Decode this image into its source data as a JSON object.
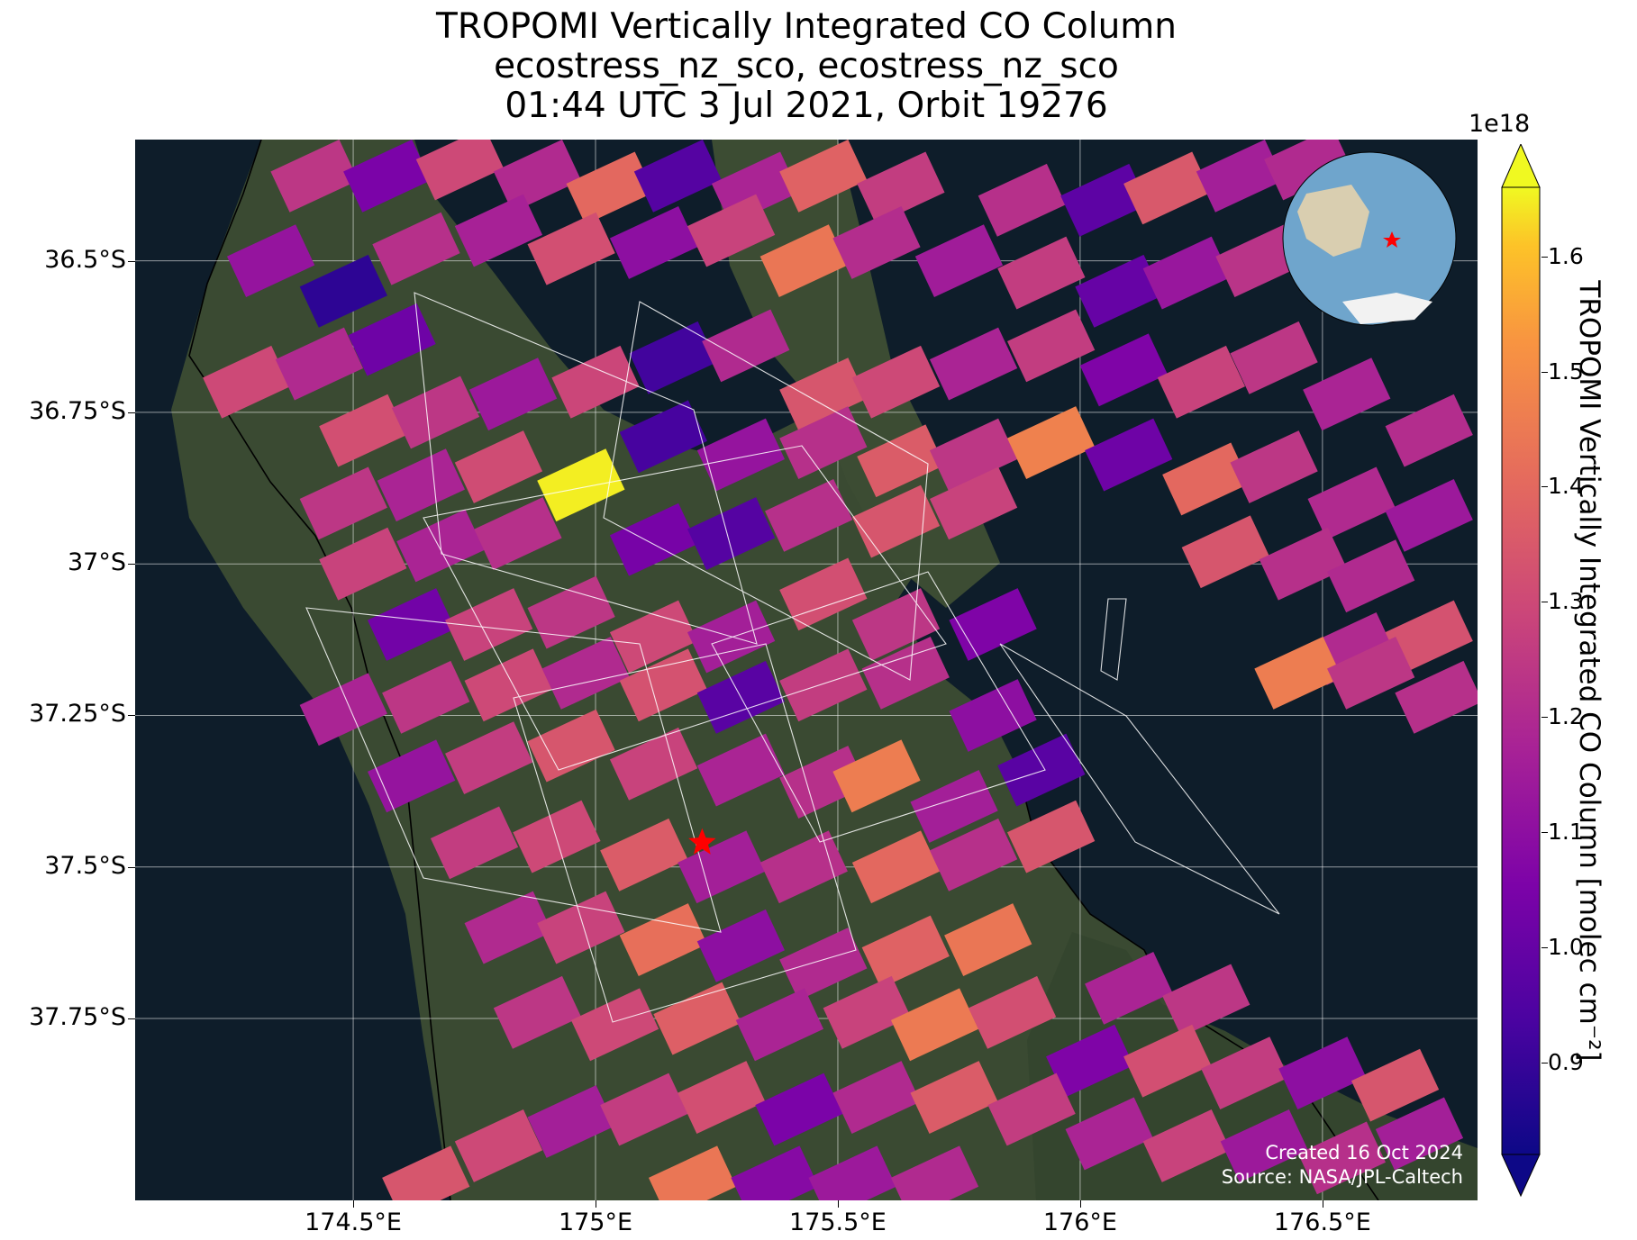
{
  "title": {
    "line1": "TROPOMI Vertically Integrated CO Column",
    "line2": "ecostress_nz_sco, ecostress_nz_sco",
    "line3": "01:44 UTC 3 Jul 2021, Orbit 19276"
  },
  "map": {
    "lon_range": [
      174.05,
      176.82
    ],
    "lat_range": [
      -38.05,
      -36.3
    ],
    "lat_ticks": [
      {
        "value": -36.5,
        "label": "36.5°S"
      },
      {
        "value": -36.75,
        "label": "36.75°S"
      },
      {
        "value": -37.0,
        "label": "37°S"
      },
      {
        "value": -37.25,
        "label": "37.25°S"
      },
      {
        "value": -37.5,
        "label": "37.5°S"
      },
      {
        "value": -37.75,
        "label": "37.75°S"
      }
    ],
    "lon_ticks": [
      {
        "value": 174.5,
        "label": "174.5°E"
      },
      {
        "value": 175.0,
        "label": "175°E"
      },
      {
        "value": 175.5,
        "label": "175.5°E"
      },
      {
        "value": 176.0,
        "label": "176°E"
      },
      {
        "value": 176.5,
        "label": "176.5°E"
      }
    ],
    "target_marker": {
      "lon": 175.22,
      "lat": -37.46,
      "color": "#ff0000"
    },
    "credit_line1": "Created 16 Oct 2024",
    "credit_line2": "Source: NASA/JPL-Caltech",
    "inset_globe": {
      "ocean_color": "#6fa5cc",
      "land_color": "#d9ceb0",
      "marker_color": "#ff0000"
    }
  },
  "colorbar": {
    "label": "TROPOMI Vertically Integrated CO Column [molec cm⁻²]",
    "exponent": "1e18",
    "colormap": "plasma",
    "vmin": 0.82,
    "vmax": 1.66,
    "ticks": [
      {
        "value": 0.9,
        "label": "0.9"
      },
      {
        "value": 1.0,
        "label": "1.0"
      },
      {
        "value": 1.1,
        "label": "1.1"
      },
      {
        "value": 1.2,
        "label": "1.2"
      },
      {
        "value": 1.3,
        "label": "1.3"
      },
      {
        "value": 1.4,
        "label": "1.4"
      },
      {
        "value": 1.5,
        "label": "1.5"
      },
      {
        "value": 1.6,
        "label": "1.6"
      }
    ]
  },
  "chart_data": {
    "type": "heatmap",
    "title": "TROPOMI Vertically Integrated CO Column",
    "xlabel": "",
    "ylabel": "",
    "units": "molec cm⁻² (×1e18)",
    "swath_angle_deg": 25,
    "cells": [
      {
        "lon": 174.42,
        "lat": -36.36,
        "v": 1.24
      },
      {
        "lon": 174.57,
        "lat": -36.36,
        "v": 1.05
      },
      {
        "lon": 174.72,
        "lat": -36.34,
        "v": 1.3
      },
      {
        "lon": 174.88,
        "lat": -36.36,
        "v": 1.2
      },
      {
        "lon": 175.03,
        "lat": -36.38,
        "v": 1.4
      },
      {
        "lon": 175.17,
        "lat": -36.36,
        "v": 0.96
      },
      {
        "lon": 175.33,
        "lat": -36.38,
        "v": 1.18
      },
      {
        "lon": 175.47,
        "lat": -36.36,
        "v": 1.38
      },
      {
        "lon": 175.63,
        "lat": -36.38,
        "v": 1.26
      },
      {
        "lon": 175.88,
        "lat": -36.4,
        "v": 1.22
      },
      {
        "lon": 176.05,
        "lat": -36.4,
        "v": 0.98
      },
      {
        "lon": 176.18,
        "lat": -36.38,
        "v": 1.35
      },
      {
        "lon": 176.33,
        "lat": -36.36,
        "v": 1.16
      },
      {
        "lon": 176.47,
        "lat": -36.34,
        "v": 1.2
      },
      {
        "lon": 174.33,
        "lat": -36.5,
        "v": 1.12
      },
      {
        "lon": 174.48,
        "lat": -36.55,
        "v": 0.88
      },
      {
        "lon": 174.63,
        "lat": -36.48,
        "v": 1.22
      },
      {
        "lon": 174.8,
        "lat": -36.45,
        "v": 1.17
      },
      {
        "lon": 174.95,
        "lat": -36.48,
        "v": 1.32
      },
      {
        "lon": 175.12,
        "lat": -36.47,
        "v": 1.1
      },
      {
        "lon": 175.28,
        "lat": -36.45,
        "v": 1.28
      },
      {
        "lon": 175.43,
        "lat": -36.5,
        "v": 1.44
      },
      {
        "lon": 175.58,
        "lat": -36.47,
        "v": 1.21
      },
      {
        "lon": 175.75,
        "lat": -36.5,
        "v": 1.15
      },
      {
        "lon": 175.92,
        "lat": -36.52,
        "v": 1.26
      },
      {
        "lon": 176.08,
        "lat": -36.55,
        "v": 1.0
      },
      {
        "lon": 176.22,
        "lat": -36.52,
        "v": 1.13
      },
      {
        "lon": 176.37,
        "lat": -36.5,
        "v": 1.23
      },
      {
        "lon": 174.28,
        "lat": -36.7,
        "v": 1.3
      },
      {
        "lon": 174.43,
        "lat": -36.67,
        "v": 1.2
      },
      {
        "lon": 174.58,
        "lat": -36.63,
        "v": 1.02
      },
      {
        "lon": 174.52,
        "lat": -36.78,
        "v": 1.32
      },
      {
        "lon": 174.67,
        "lat": -36.75,
        "v": 1.24
      },
      {
        "lon": 174.83,
        "lat": -36.72,
        "v": 1.14
      },
      {
        "lon": 175.0,
        "lat": -36.7,
        "v": 1.29
      },
      {
        "lon": 175.16,
        "lat": -36.66,
        "v": 0.92
      },
      {
        "lon": 175.31,
        "lat": -36.64,
        "v": 1.2
      },
      {
        "lon": 175.47,
        "lat": -36.72,
        "v": 1.34
      },
      {
        "lon": 175.62,
        "lat": -36.7,
        "v": 1.3
      },
      {
        "lon": 175.78,
        "lat": -36.67,
        "v": 1.18
      },
      {
        "lon": 175.94,
        "lat": -36.64,
        "v": 1.26
      },
      {
        "lon": 176.09,
        "lat": -36.68,
        "v": 1.06
      },
      {
        "lon": 176.25,
        "lat": -36.7,
        "v": 1.28
      },
      {
        "lon": 176.4,
        "lat": -36.66,
        "v": 1.24
      },
      {
        "lon": 176.55,
        "lat": -36.72,
        "v": 1.18
      },
      {
        "lon": 176.72,
        "lat": -36.78,
        "v": 1.21
      },
      {
        "lon": 174.48,
        "lat": -36.9,
        "v": 1.24
      },
      {
        "lon": 174.64,
        "lat": -36.87,
        "v": 1.18
      },
      {
        "lon": 174.8,
        "lat": -36.84,
        "v": 1.31
      },
      {
        "lon": 174.97,
        "lat": -36.87,
        "v": 1.65
      },
      {
        "lon": 175.14,
        "lat": -36.79,
        "v": 0.93
      },
      {
        "lon": 175.3,
        "lat": -36.82,
        "v": 1.12
      },
      {
        "lon": 175.47,
        "lat": -36.8,
        "v": 1.22
      },
      {
        "lon": 175.63,
        "lat": -36.83,
        "v": 1.36
      },
      {
        "lon": 175.78,
        "lat": -36.82,
        "v": 1.24
      },
      {
        "lon": 175.94,
        "lat": -36.8,
        "v": 1.47
      },
      {
        "lon": 176.1,
        "lat": -36.82,
        "v": 1.02
      },
      {
        "lon": 176.26,
        "lat": -36.86,
        "v": 1.4
      },
      {
        "lon": 176.4,
        "lat": -36.84,
        "v": 1.24
      },
      {
        "lon": 176.56,
        "lat": -36.9,
        "v": 1.2
      },
      {
        "lon": 176.72,
        "lat": -36.92,
        "v": 1.14
      },
      {
        "lon": 174.52,
        "lat": -37.0,
        "v": 1.28
      },
      {
        "lon": 174.68,
        "lat": -36.97,
        "v": 1.18
      },
      {
        "lon": 174.84,
        "lat": -36.95,
        "v": 1.22
      },
      {
        "lon": 175.12,
        "lat": -36.96,
        "v": 1.04
      },
      {
        "lon": 175.28,
        "lat": -36.95,
        "v": 0.96
      },
      {
        "lon": 175.44,
        "lat": -36.92,
        "v": 1.22
      },
      {
        "lon": 175.62,
        "lat": -36.93,
        "v": 1.34
      },
      {
        "lon": 175.78,
        "lat": -36.9,
        "v": 1.28
      },
      {
        "lon": 176.3,
        "lat": -36.98,
        "v": 1.34
      },
      {
        "lon": 176.46,
        "lat": -37.0,
        "v": 1.22
      },
      {
        "lon": 176.6,
        "lat": -37.02,
        "v": 1.2
      },
      {
        "lon": 174.62,
        "lat": -37.1,
        "v": 1.03
      },
      {
        "lon": 174.78,
        "lat": -37.1,
        "v": 1.28
      },
      {
        "lon": 174.95,
        "lat": -37.08,
        "v": 1.24
      },
      {
        "lon": 175.12,
        "lat": -37.12,
        "v": 1.3
      },
      {
        "lon": 175.28,
        "lat": -37.12,
        "v": 1.16
      },
      {
        "lon": 175.47,
        "lat": -37.05,
        "v": 1.32
      },
      {
        "lon": 175.62,
        "lat": -37.1,
        "v": 1.24
      },
      {
        "lon": 175.82,
        "lat": -37.1,
        "v": 1.06
      },
      {
        "lon": 176.56,
        "lat": -37.14,
        "v": 1.2
      },
      {
        "lon": 176.72,
        "lat": -37.12,
        "v": 1.33
      },
      {
        "lon": 174.48,
        "lat": -37.24,
        "v": 1.18
      },
      {
        "lon": 174.65,
        "lat": -37.22,
        "v": 1.24
      },
      {
        "lon": 174.82,
        "lat": -37.2,
        "v": 1.3
      },
      {
        "lon": 174.98,
        "lat": -37.18,
        "v": 1.2
      },
      {
        "lon": 175.14,
        "lat": -37.2,
        "v": 1.33
      },
      {
        "lon": 175.3,
        "lat": -37.22,
        "v": 0.97
      },
      {
        "lon": 175.47,
        "lat": -37.2,
        "v": 1.26
      },
      {
        "lon": 175.64,
        "lat": -37.18,
        "v": 1.22
      },
      {
        "lon": 175.82,
        "lat": -37.25,
        "v": 1.1
      },
      {
        "lon": 176.45,
        "lat": -37.18,
        "v": 1.46
      },
      {
        "lon": 176.6,
        "lat": -37.18,
        "v": 1.24
      },
      {
        "lon": 176.74,
        "lat": -37.22,
        "v": 1.22
      },
      {
        "lon": 174.62,
        "lat": -37.35,
        "v": 1.12
      },
      {
        "lon": 174.78,
        "lat": -37.32,
        "v": 1.26
      },
      {
        "lon": 174.95,
        "lat": -37.3,
        "v": 1.34
      },
      {
        "lon": 175.12,
        "lat": -37.33,
        "v": 1.28
      },
      {
        "lon": 175.3,
        "lat": -37.34,
        "v": 1.18
      },
      {
        "lon": 175.47,
        "lat": -37.36,
        "v": 1.22
      },
      {
        "lon": 175.58,
        "lat": -37.35,
        "v": 1.46
      },
      {
        "lon": 175.74,
        "lat": -37.4,
        "v": 1.16
      },
      {
        "lon": 175.92,
        "lat": -37.34,
        "v": 0.97
      },
      {
        "lon": 174.75,
        "lat": -37.46,
        "v": 1.26
      },
      {
        "lon": 174.92,
        "lat": -37.45,
        "v": 1.3
      },
      {
        "lon": 175.1,
        "lat": -37.48,
        "v": 1.36
      },
      {
        "lon": 175.26,
        "lat": -37.5,
        "v": 1.16
      },
      {
        "lon": 175.43,
        "lat": -37.5,
        "v": 1.22
      },
      {
        "lon": 175.62,
        "lat": -37.5,
        "v": 1.4
      },
      {
        "lon": 175.78,
        "lat": -37.48,
        "v": 1.22
      },
      {
        "lon": 175.94,
        "lat": -37.45,
        "v": 1.34
      },
      {
        "lon": 174.82,
        "lat": -37.6,
        "v": 1.2
      },
      {
        "lon": 174.97,
        "lat": -37.6,
        "v": 1.28
      },
      {
        "lon": 175.14,
        "lat": -37.62,
        "v": 1.42
      },
      {
        "lon": 175.3,
        "lat": -37.63,
        "v": 1.1
      },
      {
        "lon": 175.47,
        "lat": -37.66,
        "v": 1.2
      },
      {
        "lon": 175.64,
        "lat": -37.64,
        "v": 1.38
      },
      {
        "lon": 175.81,
        "lat": -37.62,
        "v": 1.44
      },
      {
        "lon": 176.1,
        "lat": -37.7,
        "v": 1.18
      },
      {
        "lon": 176.26,
        "lat": -37.72,
        "v": 1.24
      },
      {
        "lon": 174.88,
        "lat": -37.74,
        "v": 1.24
      },
      {
        "lon": 175.04,
        "lat": -37.76,
        "v": 1.3
      },
      {
        "lon": 175.21,
        "lat": -37.75,
        "v": 1.37
      },
      {
        "lon": 175.38,
        "lat": -37.76,
        "v": 1.18
      },
      {
        "lon": 175.56,
        "lat": -37.74,
        "v": 1.28
      },
      {
        "lon": 175.7,
        "lat": -37.76,
        "v": 1.45
      },
      {
        "lon": 175.86,
        "lat": -37.74,
        "v": 1.32
      },
      {
        "lon": 176.02,
        "lat": -37.82,
        "v": 1.06
      },
      {
        "lon": 176.18,
        "lat": -37.82,
        "v": 1.32
      },
      {
        "lon": 176.34,
        "lat": -37.84,
        "v": 1.26
      },
      {
        "lon": 176.5,
        "lat": -37.84,
        "v": 1.1
      },
      {
        "lon": 176.65,
        "lat": -37.86,
        "v": 1.34
      },
      {
        "lon": 174.8,
        "lat": -37.96,
        "v": 1.3
      },
      {
        "lon": 174.95,
        "lat": -37.92,
        "v": 1.16
      },
      {
        "lon": 175.1,
        "lat": -37.9,
        "v": 1.26
      },
      {
        "lon": 175.26,
        "lat": -37.88,
        "v": 1.32
      },
      {
        "lon": 175.42,
        "lat": -37.9,
        "v": 1.05
      },
      {
        "lon": 175.58,
        "lat": -37.88,
        "v": 1.2
      },
      {
        "lon": 175.74,
        "lat": -37.88,
        "v": 1.36
      },
      {
        "lon": 175.9,
        "lat": -37.9,
        "v": 1.26
      },
      {
        "lon": 176.06,
        "lat": -37.94,
        "v": 1.18
      },
      {
        "lon": 176.22,
        "lat": -37.96,
        "v": 1.28
      },
      {
        "lon": 176.38,
        "lat": -37.96,
        "v": 1.14
      },
      {
        "lon": 176.54,
        "lat": -37.98,
        "v": 1.22
      },
      {
        "lon": 176.7,
        "lat": -37.94,
        "v": 1.16
      },
      {
        "lon": 174.65,
        "lat": -38.02,
        "v": 1.34
      },
      {
        "lon": 175.2,
        "lat": -38.02,
        "v": 1.44
      },
      {
        "lon": 175.37,
        "lat": -38.02,
        "v": 1.08
      },
      {
        "lon": 175.53,
        "lat": -38.02,
        "v": 1.14
      },
      {
        "lon": 175.7,
        "lat": -38.02,
        "v": 1.2
      }
    ]
  }
}
